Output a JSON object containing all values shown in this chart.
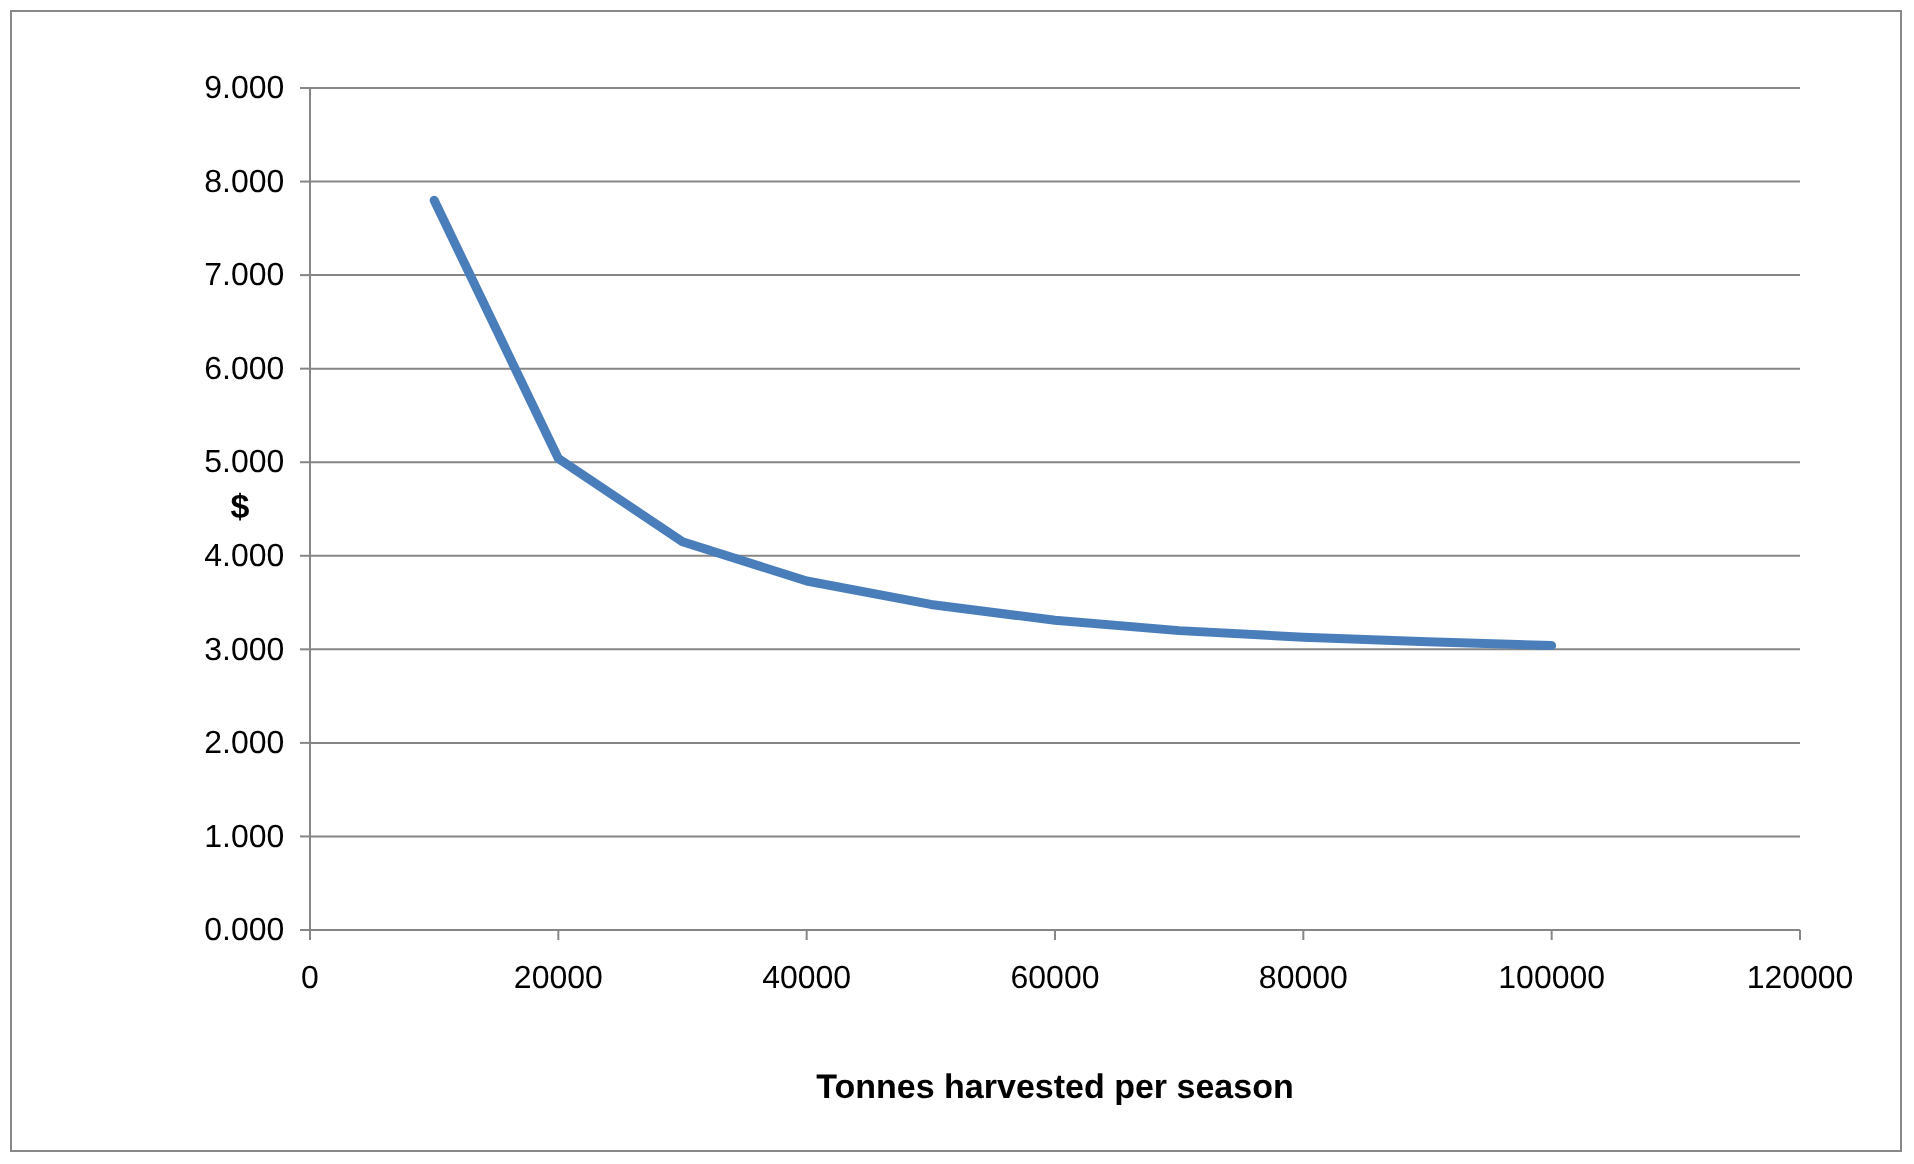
{
  "chart_data": {
    "type": "line",
    "xlabel": "Tonnes harvested per season",
    "ylabel": "$",
    "x": [
      10000,
      20000,
      30000,
      40000,
      50000,
      60000,
      70000,
      80000,
      90000,
      100000
    ],
    "series": [
      {
        "color": "#4a7ebb",
        "values": [
          7.8,
          5.04,
          4.15,
          3.73,
          3.48,
          3.31,
          3.2,
          3.13,
          3.08,
          3.04
        ]
      }
    ],
    "xlim": [
      0,
      120000
    ],
    "xticks": [
      0,
      20000,
      40000,
      60000,
      80000,
      100000,
      120000
    ],
    "ylim": [
      0,
      9
    ],
    "yticks": [
      {
        "value": 0,
        "label": "0.000"
      },
      {
        "value": 1,
        "label": "1.000"
      },
      {
        "value": 2,
        "label": "2.000"
      },
      {
        "value": 3,
        "label": "3.000"
      },
      {
        "value": 4,
        "label": "4.000"
      },
      {
        "value": 5,
        "label": "5.000"
      },
      {
        "value": 6,
        "label": "6.000"
      },
      {
        "value": 7,
        "label": "7.000"
      },
      {
        "value": 8,
        "label": "8.000"
      },
      {
        "value": 9,
        "label": "9.000"
      }
    ],
    "grid": "y",
    "marker": "none",
    "line_style": "solid"
  }
}
